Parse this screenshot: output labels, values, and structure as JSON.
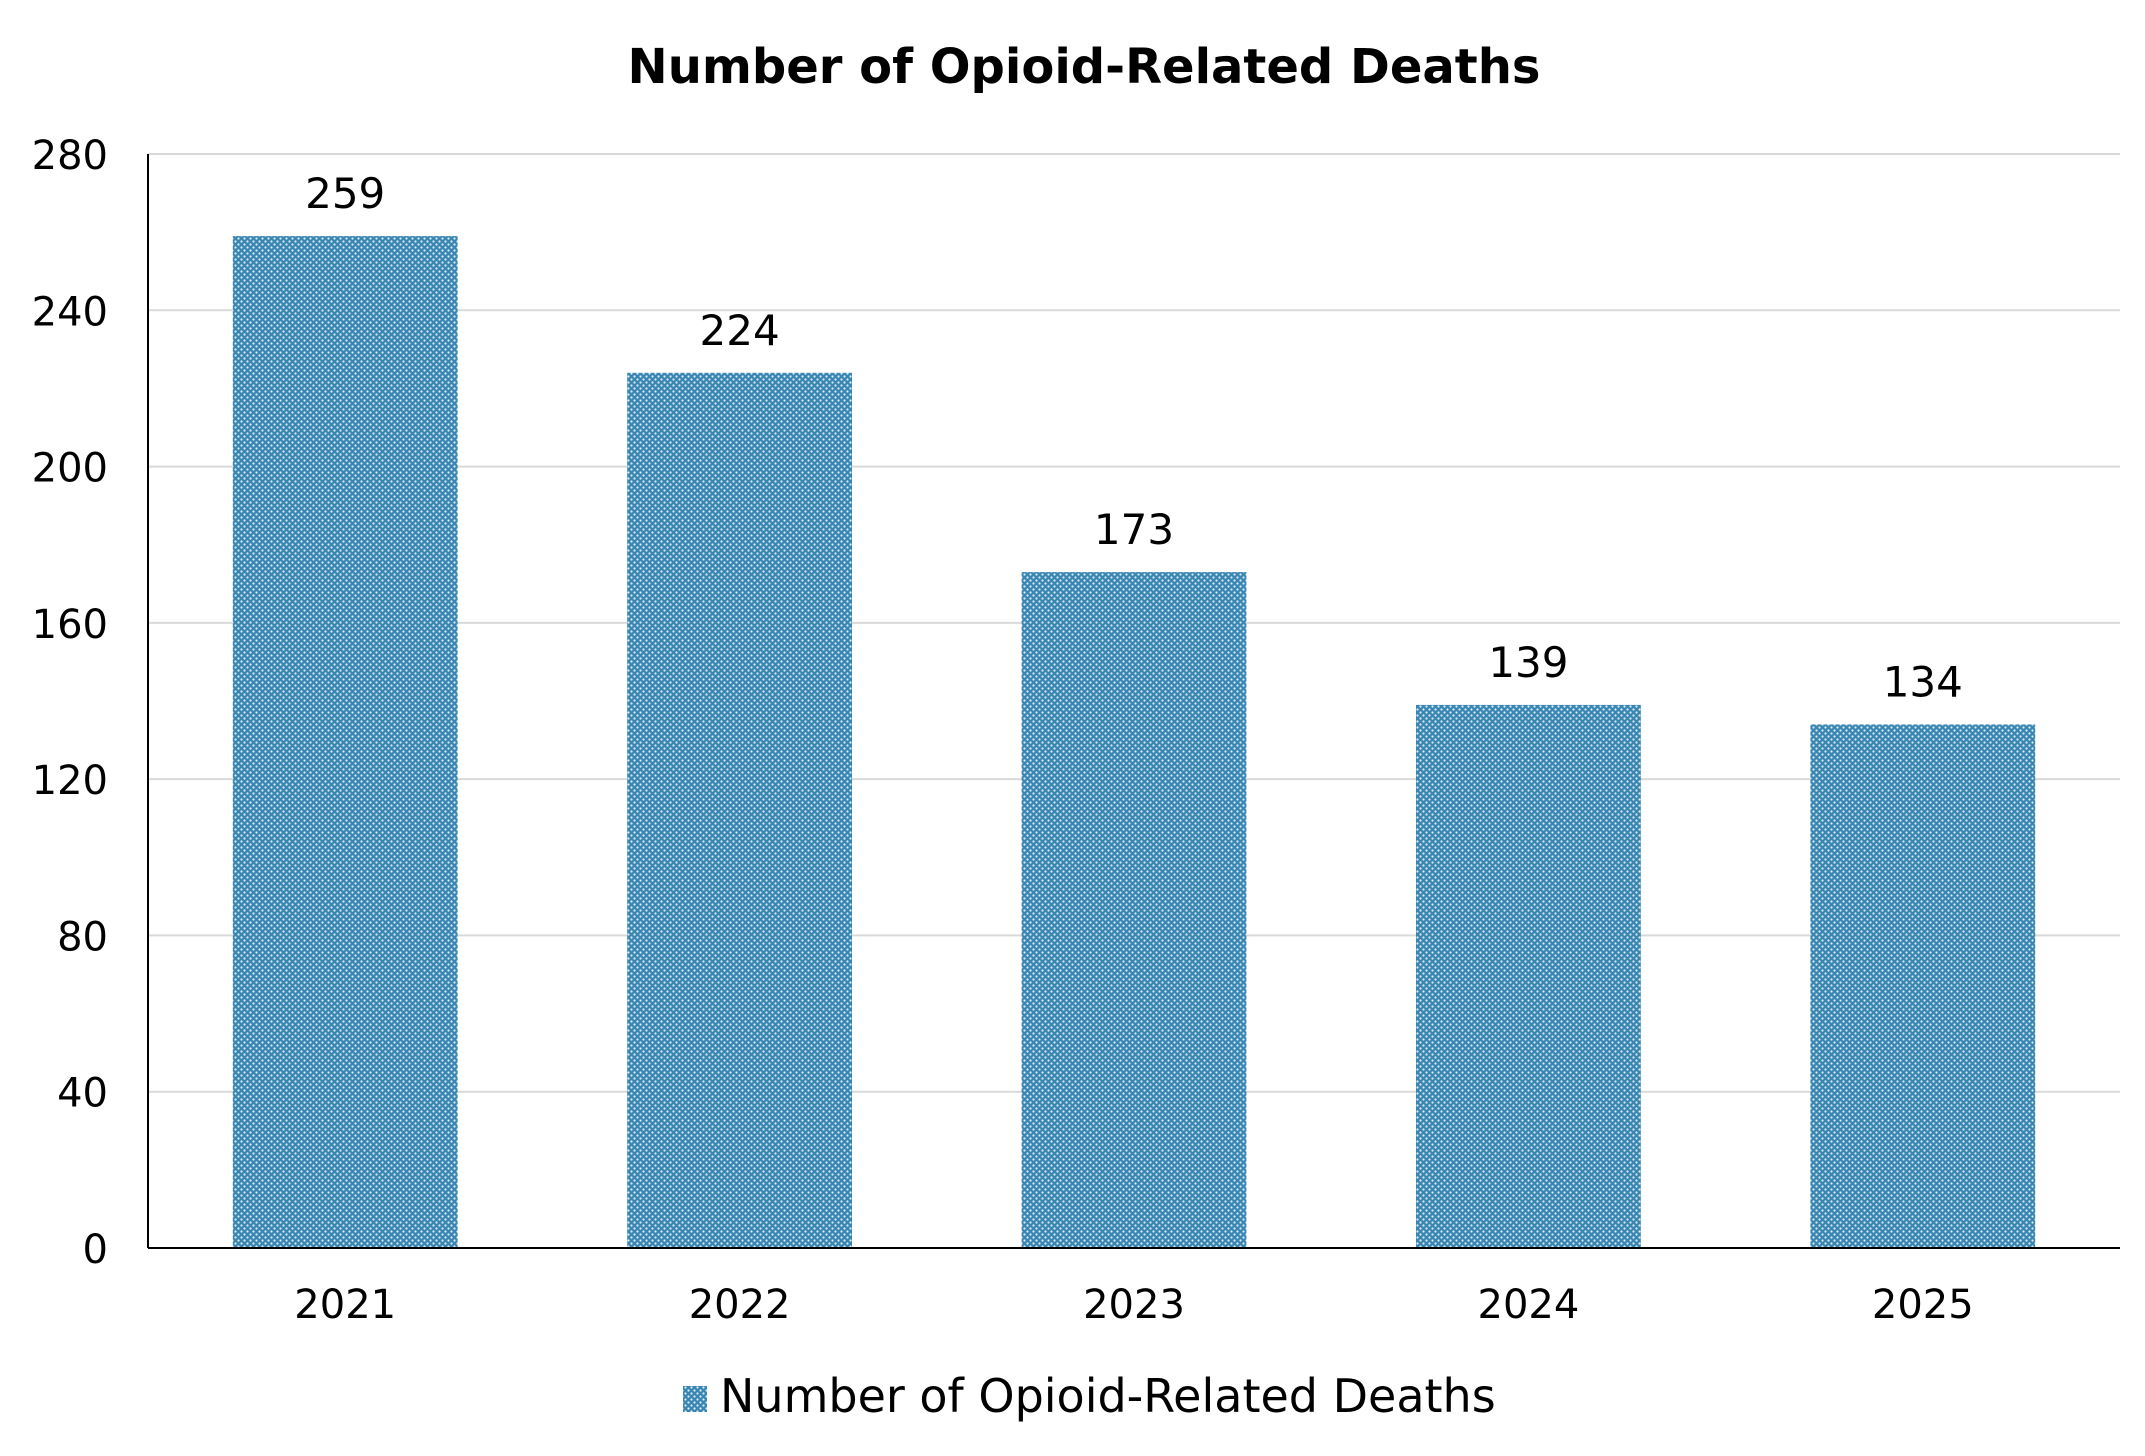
{
  "chart_data": {
    "type": "bar",
    "title": "Number of Opioid-Related Deaths",
    "xlabel": "",
    "ylabel": "",
    "categories": [
      "2021",
      "2022",
      "2023",
      "2024",
      "2025"
    ],
    "series": [
      {
        "name": "Number of Opioid-Related Deaths",
        "values": [
          259,
          224,
          173,
          139,
          134
        ],
        "data_labels": [
          "259",
          "224",
          "173",
          "139",
          "134"
        ]
      }
    ],
    "ylim": [
      0,
      280
    ],
    "yticks": [
      0,
      40,
      80,
      120,
      160,
      200,
      240,
      280
    ],
    "ytick_labels": [
      "0",
      "40",
      "80",
      "120",
      "160",
      "200",
      "240",
      "280"
    ],
    "grid": true,
    "legend_position": "bottom",
    "colors": {
      "bar": "#3a86b3",
      "bar_dot": "#dfeef6",
      "grid": "#d9d9d9",
      "axis": "#000000",
      "text": "#000000"
    }
  }
}
